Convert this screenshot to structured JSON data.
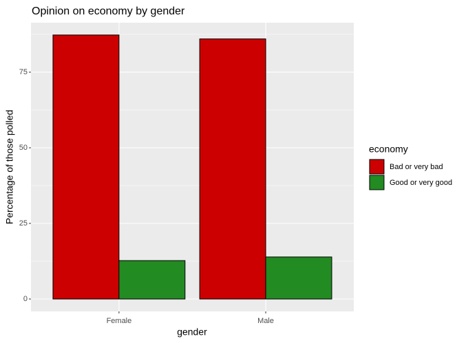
{
  "chart_data": {
    "type": "bar",
    "title": "Opinion on economy by gender",
    "x_label": "gender",
    "y_label": "Percentage of those polled",
    "categories": [
      "Female",
      "Male"
    ],
    "legend_title": "economy",
    "series": [
      {
        "name": "Bad or very bad",
        "color": "#cc0000",
        "values": [
          87.3,
          86.0
        ]
      },
      {
        "name": "Good or very good",
        "color": "#228b22",
        "values": [
          12.7,
          13.9
        ]
      }
    ],
    "ylim": [
      -4.09,
      91.36
    ],
    "yticks": [
      0,
      25,
      50,
      75
    ],
    "minor_yticks": [
      12.5,
      37.5,
      62.5,
      87.5
    ],
    "grid": true,
    "legend_position": "right"
  }
}
